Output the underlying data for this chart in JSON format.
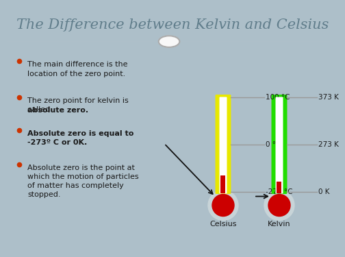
{
  "title": "The Difference between Kelvin and Celsius",
  "title_fontsize": 15,
  "title_color": "#607d8b",
  "bg_color": "#adbfc9",
  "title_bg_color": "#f8f8f8",
  "bullet_color": "#cc3300",
  "text_color": "#1a1a1a",
  "celsius_label": "Celsius",
  "kelvin_label": "Kelvin",
  "celsius_color": "#e8e800",
  "kelvin_color": "#22dd00",
  "mercury_color": "#cc0000",
  "bulb_color": "#cc0000",
  "bulb_outer_color": "#c8d4d8",
  "tick_line_color": "#999999",
  "label_100c": "100 °C",
  "label_0c": "0 °C",
  "label_273c": "-273 °C",
  "label_373k": "373 K",
  "label_273k": "273 K",
  "label_0k": "0 K",
  "arrow_color": "#111111",
  "divider_circle_color": "#aaaaaa",
  "bottom_bar_color": "#8fa8b4"
}
